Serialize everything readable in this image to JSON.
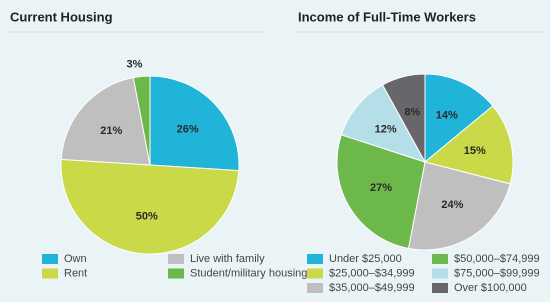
{
  "chart_data": [
    {
      "type": "pie",
      "title": "Current Housing",
      "categories": [
        "Own",
        "Rent",
        "Live with family",
        "Student/military housing"
      ],
      "values": [
        26,
        50,
        21,
        3
      ],
      "value_labels": [
        "26%",
        "50%",
        "21%",
        "3%"
      ],
      "colors": [
        "#1fb4d8",
        "#c9d947",
        "#bfbfbf",
        "#6db84b"
      ]
    },
    {
      "type": "pie",
      "title": "Income of Full-Time Workers",
      "categories": [
        "Under $25,000",
        "$25,000–$34,999",
        "$35,000–$49,999",
        "$50,000–$74,999",
        "$75,000–$99,999",
        "Over $100,000"
      ],
      "values": [
        14,
        15,
        24,
        27,
        12,
        8
      ],
      "value_labels": [
        "14%",
        "15%",
        "24%",
        "27%",
        "12%",
        "8%"
      ],
      "colors": [
        "#1fb4d8",
        "#c9d947",
        "#bfbfbf",
        "#6db84b",
        "#b5dfe8",
        "#67676b"
      ]
    }
  ]
}
